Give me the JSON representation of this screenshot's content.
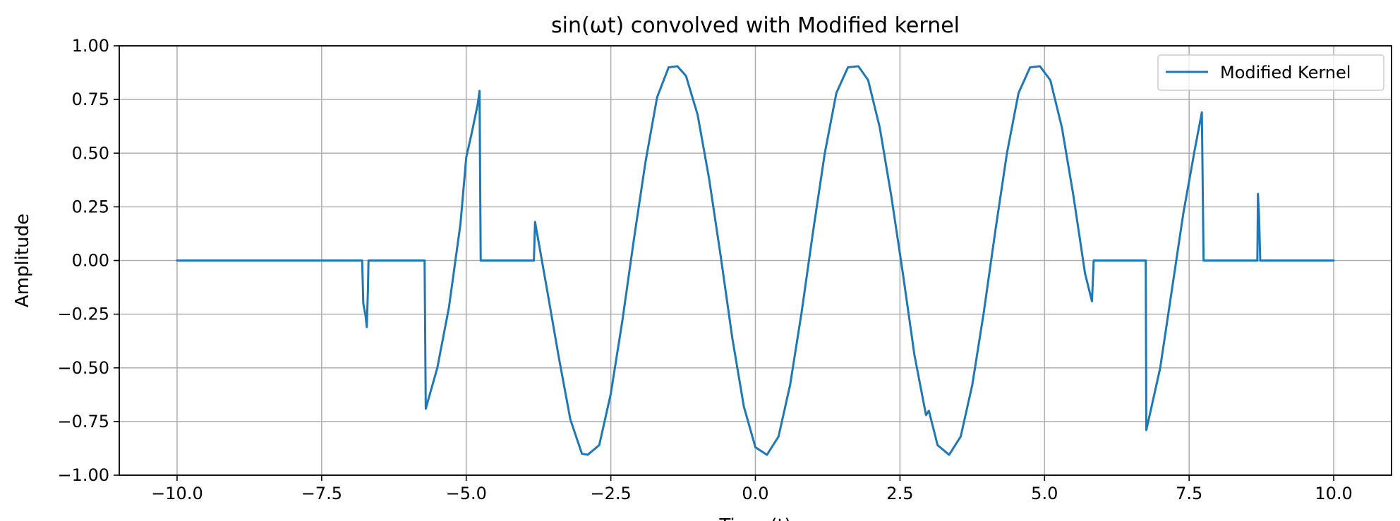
{
  "chart_data": {
    "type": "line",
    "title": "sin(ωt) convolved with Modified kernel",
    "xlabel": "Time (t)",
    "ylabel": "Amplitude",
    "xlim": [
      -11.0,
      11.0
    ],
    "ylim": [
      -1.0,
      1.0
    ],
    "grid": true,
    "legend_position": "top-right",
    "x_ticks": [
      -10.0,
      -7.5,
      -5.0,
      -2.5,
      0.0,
      2.5,
      5.0,
      7.5,
      10.0
    ],
    "x_tick_labels": [
      "−10.0",
      "−7.5",
      "−5.0",
      "−2.5",
      "0.0",
      "2.5",
      "5.0",
      "7.5",
      "10.0"
    ],
    "y_ticks": [
      -1.0,
      -0.75,
      -0.5,
      -0.25,
      0.0,
      0.25,
      0.5,
      0.75,
      1.0
    ],
    "y_tick_labels": [
      "−1.00",
      "−0.75",
      "−0.50",
      "−0.25",
      "0.00",
      "0.25",
      "0.50",
      "0.75",
      "1.00"
    ],
    "series": [
      {
        "name": "Modified Kernel",
        "color": "#1f77b4",
        "points": [
          [
            -10.0,
            0.0
          ],
          [
            -6.8,
            0.0
          ],
          [
            -6.78,
            -0.2
          ],
          [
            -6.74,
            -0.26
          ],
          [
            -6.72,
            -0.31
          ],
          [
            -6.7,
            -0.14
          ],
          [
            -6.69,
            0.0
          ],
          [
            -5.72,
            0.0
          ],
          [
            -5.7,
            -0.69
          ],
          [
            -5.5,
            -0.5
          ],
          [
            -5.3,
            -0.22
          ],
          [
            -5.1,
            0.17
          ],
          [
            -5.0,
            0.48
          ],
          [
            -4.9,
            0.6
          ],
          [
            -4.8,
            0.73
          ],
          [
            -4.77,
            0.79
          ],
          [
            -4.75,
            0.0
          ],
          [
            -3.83,
            0.0
          ],
          [
            -3.81,
            0.18
          ],
          [
            -3.6,
            -0.14
          ],
          [
            -3.4,
            -0.45
          ],
          [
            -3.2,
            -0.74
          ],
          [
            -3.0,
            -0.9
          ],
          [
            -2.9,
            -0.905
          ],
          [
            -2.7,
            -0.86
          ],
          [
            -2.5,
            -0.62
          ],
          [
            -2.3,
            -0.28
          ],
          [
            -2.1,
            0.1
          ],
          [
            -1.9,
            0.46
          ],
          [
            -1.7,
            0.76
          ],
          [
            -1.5,
            0.9
          ],
          [
            -1.35,
            0.905
          ],
          [
            -1.2,
            0.86
          ],
          [
            -1.0,
            0.68
          ],
          [
            -0.8,
            0.38
          ],
          [
            -0.6,
            0.02
          ],
          [
            -0.4,
            -0.36
          ],
          [
            -0.2,
            -0.68
          ],
          [
            0.0,
            -0.87
          ],
          [
            0.2,
            -0.905
          ],
          [
            0.4,
            -0.82
          ],
          [
            0.6,
            -0.58
          ],
          [
            0.8,
            -0.24
          ],
          [
            1.0,
            0.14
          ],
          [
            1.2,
            0.5
          ],
          [
            1.4,
            0.78
          ],
          [
            1.6,
            0.9
          ],
          [
            1.78,
            0.905
          ],
          [
            1.95,
            0.84
          ],
          [
            2.15,
            0.62
          ],
          [
            2.35,
            0.3
          ],
          [
            2.55,
            -0.06
          ],
          [
            2.75,
            -0.44
          ],
          [
            2.95,
            -0.72
          ],
          [
            3.0,
            -0.7
          ],
          [
            3.15,
            -0.86
          ],
          [
            3.35,
            -0.905
          ],
          [
            3.55,
            -0.82
          ],
          [
            3.75,
            -0.58
          ],
          [
            3.95,
            -0.24
          ],
          [
            4.15,
            0.14
          ],
          [
            4.35,
            0.5
          ],
          [
            4.55,
            0.78
          ],
          [
            4.75,
            0.9
          ],
          [
            4.92,
            0.905
          ],
          [
            5.1,
            0.84
          ],
          [
            5.3,
            0.62
          ],
          [
            5.5,
            0.3
          ],
          [
            5.7,
            -0.06
          ],
          [
            5.82,
            -0.19
          ],
          [
            5.85,
            0.0
          ],
          [
            6.75,
            0.0
          ],
          [
            6.76,
            -0.79
          ],
          [
            7.0,
            -0.5
          ],
          [
            7.2,
            -0.14
          ],
          [
            7.4,
            0.22
          ],
          [
            7.6,
            0.52
          ],
          [
            7.72,
            0.69
          ],
          [
            7.75,
            0.0
          ],
          [
            8.68,
            0.0
          ],
          [
            8.69,
            0.31
          ],
          [
            8.71,
            0.2
          ],
          [
            8.73,
            0.0
          ],
          [
            10.0,
            0.0
          ]
        ]
      }
    ]
  }
}
